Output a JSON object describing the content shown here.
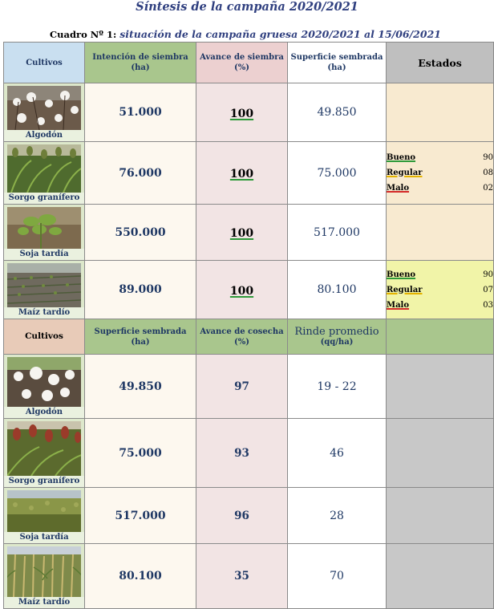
{
  "title": "Síntesis de la campaña 2020/2021",
  "subtitle": {
    "label": "Cuadro Nº 1:",
    "text": "situación de la campaña gruesa 2020/2021 al  15/06/2021"
  },
  "section1": {
    "headers": {
      "cultivos": "Cultivos",
      "intencion": "Intención de siembra",
      "intencion_unit": "(ha)",
      "avance": "Avance de siembra",
      "avance_unit": "(%)",
      "superficie": "Superficie sembrada",
      "superficie_unit": "(ha)",
      "estados": "Estados"
    },
    "rows": [
      {
        "crop": "Algodón",
        "intencion": "51.000",
        "avance": "100",
        "superficie": "49.850"
      },
      {
        "crop": "Sorgo granífero",
        "intencion": "76.000",
        "avance": "100",
        "superficie": "75.000",
        "estados": [
          {
            "label": "Bueno",
            "value": "90"
          },
          {
            "label": "Regular",
            "value": "08"
          },
          {
            "label": "Malo",
            "value": "02"
          }
        ]
      },
      {
        "crop": "Soja tardía",
        "intencion": "550.000",
        "avance": "100",
        "superficie": "517.000"
      },
      {
        "crop": "Maíz tardío",
        "intencion": "89.000",
        "avance": "100",
        "superficie": "80.100",
        "estados": [
          {
            "label": "Bueno",
            "value": "90"
          },
          {
            "label": "Regular",
            "value": "07"
          },
          {
            "label": "Malo",
            "value": "03"
          }
        ]
      }
    ]
  },
  "section2": {
    "headers": {
      "cultivos": "Cultivos",
      "superficie": "Superficie sembrada",
      "superficie_unit": "(ha)",
      "cosecha": "Avance de cosecha",
      "cosecha_unit": "(%)",
      "rinde": "Rinde promedio",
      "rinde_unit": "(qq/ha)"
    },
    "rows": [
      {
        "crop": "Algodón",
        "superficie": "49.850",
        "cosecha": "97",
        "rinde": "19 - 22"
      },
      {
        "crop": "Sorgo granífero",
        "superficie": "75.000",
        "cosecha": "93",
        "rinde": "46"
      },
      {
        "crop": "Soja tardía",
        "superficie": "517.000",
        "cosecha": "96",
        "rinde": "28"
      },
      {
        "crop": "Maíz tardío",
        "superficie": "80.100",
        "cosecha": "35",
        "rinde": "70"
      }
    ]
  },
  "colors": {
    "title": "#2f3f7f",
    "header_green": "#a9c68d",
    "header_pink": "#ecd0d0",
    "estado_bg": "#f8ead0",
    "grey": "#c8c8c8"
  }
}
